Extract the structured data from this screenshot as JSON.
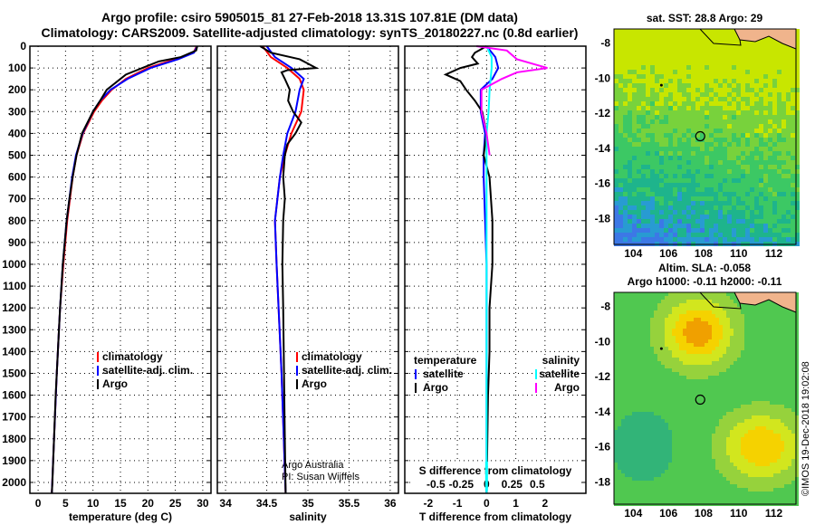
{
  "title": {
    "line1": "Argo profile: csiro 5905015_81 27-Feb-2018 13.31S 107.81E (DM data)",
    "line2": "Climatology: CARS2009. Satellite-adjusted climatology: synTS_20180227.nc (0.8d earlier)"
  },
  "credit": {
    "line1": "Argo Australia",
    "line2": "PI: Susan Wijffels"
  },
  "timestamp": "©IMOS 19-Dec-2018 19:02:08",
  "colors": {
    "climatology": "#ff0000",
    "satellite": "#0000ff",
    "argo": "#000000",
    "sat_salinity": "#00ffff",
    "argo_salinity": "#ff00ff"
  },
  "chart_data": [
    {
      "type": "line",
      "name": "temperature",
      "xlabel": "temperature (deg C)",
      "xlim": [
        -1.5,
        31.5
      ],
      "ylim": [
        2050,
        0
      ],
      "xticks": [
        0,
        5,
        10,
        15,
        20,
        25,
        30
      ],
      "yticks": [
        0,
        100,
        200,
        300,
        400,
        500,
        600,
        700,
        800,
        900,
        1000,
        1100,
        1200,
        1300,
        1400,
        1500,
        1600,
        1700,
        1800,
        1900,
        2000
      ],
      "legend": [
        "climatology",
        "satellite-adj. clim.",
        "Argo"
      ],
      "series": [
        {
          "name": "climatology",
          "color": "#ff0000",
          "depth": [
            0,
            30,
            60,
            100,
            150,
            200,
            250,
            300,
            400,
            500,
            600,
            800,
            1000,
            1200,
            1500,
            1800,
            2050
          ],
          "values": [
            28.9,
            28.3,
            25,
            20,
            16,
            13.4,
            11.6,
            10.2,
            8.2,
            7,
            6.3,
            5.3,
            4.6,
            4,
            3.4,
            2.9,
            2.5
          ]
        },
        {
          "name": "satellite-adj. clim.",
          "color": "#0000ff",
          "depth": [
            0,
            30,
            60,
            100,
            150,
            200,
            250,
            300,
            400,
            500,
            600,
            800,
            1000,
            1200,
            1500,
            1800,
            2050
          ],
          "values": [
            29,
            28.4,
            25.5,
            20.5,
            16.3,
            13.2,
            11.3,
            10,
            8.1,
            6.9,
            6.2,
            5.2,
            4.5,
            4,
            3.4,
            2.9,
            2.5
          ]
        },
        {
          "name": "Argo",
          "color": "#000000",
          "depth": [
            0,
            20,
            50,
            70,
            100,
            130,
            160,
            200,
            250,
            300,
            400,
            500,
            600,
            700,
            800,
            1000,
            1200,
            1400,
            1600,
            1800,
            2000,
            2050
          ],
          "values": [
            29,
            28.8,
            26,
            22,
            19,
            16,
            14.5,
            12.5,
            11.3,
            10,
            8,
            7,
            6.3,
            5.7,
            5.2,
            4.5,
            4,
            3.6,
            3.2,
            2.9,
            2.6,
            2.5
          ]
        }
      ]
    },
    {
      "type": "line",
      "name": "salinity",
      "xlabel": "salinity",
      "xlim": [
        33.9,
        36.1
      ],
      "ylim": [
        2050,
        0
      ],
      "xticks": [
        34,
        34.5,
        35,
        35.5,
        36
      ],
      "legend": [
        "climatology",
        "satellite-adj. clim.",
        "Argo"
      ],
      "series": [
        {
          "name": "climatology",
          "color": "#ff0000",
          "depth": [
            0,
            50,
            100,
            150,
            200,
            300,
            400,
            500,
            600,
            800,
            1000,
            1500,
            2050
          ],
          "values": [
            34.45,
            34.55,
            34.75,
            34.9,
            34.95,
            34.92,
            34.8,
            34.72,
            34.66,
            34.6,
            34.62,
            34.68,
            34.73
          ]
        },
        {
          "name": "satellite-adj. clim.",
          "color": "#0000ff",
          "depth": [
            0,
            50,
            100,
            150,
            200,
            300,
            400,
            500,
            600,
            800,
            1000,
            1500,
            2050
          ],
          "values": [
            34.5,
            34.6,
            34.8,
            34.95,
            34.9,
            34.85,
            34.75,
            34.7,
            34.66,
            34.6,
            34.62,
            34.68,
            34.73
          ]
        },
        {
          "name": "Argo",
          "color": "#000000",
          "depth": [
            0,
            30,
            60,
            80,
            100,
            110,
            120,
            150,
            200,
            250,
            300,
            350,
            400,
            450,
            500,
            600,
            700,
            800,
            1000,
            1200,
            1500,
            1800,
            2050
          ],
          "values": [
            34.42,
            34.55,
            34.9,
            35.0,
            35.1,
            34.75,
            34.68,
            34.72,
            34.78,
            34.76,
            34.82,
            34.92,
            34.85,
            34.75,
            34.72,
            34.7,
            34.72,
            34.7,
            34.69,
            34.7,
            34.71,
            34.72,
            34.73
          ]
        }
      ]
    },
    {
      "type": "line",
      "name": "difference",
      "xlabel": "T difference from climatology",
      "x2label": "S difference from climatology",
      "xlim": [
        -2.8,
        3.4
      ],
      "ylim": [
        2050,
        0
      ],
      "xticks": [
        -2,
        -1,
        0,
        1,
        2
      ],
      "x2ticks": [
        -0.5,
        -0.25,
        0,
        0.25,
        0.5
      ],
      "s_scale": 3.47,
      "legend_left": {
        "title": "temperature",
        "items": [
          "satellite",
          "Argo"
        ]
      },
      "legend_right": {
        "title": "salinity",
        "items": [
          "satellite",
          "Argo"
        ]
      },
      "series": [
        {
          "name": "T satellite",
          "color": "#0000ff",
          "axis": "T",
          "depth": [
            0,
            50,
            100,
            150,
            200,
            300,
            400,
            500,
            600,
            800,
            1000,
            2050
          ],
          "values": [
            0,
            0.3,
            0.4,
            0.2,
            -0.2,
            -0.2,
            -0.05,
            -0.1,
            -0.1,
            -0.05,
            0,
            0
          ]
        },
        {
          "name": "T Argo",
          "color": "#000000",
          "axis": "T",
          "depth": [
            0,
            30,
            50,
            80,
            100,
            130,
            160,
            200,
            250,
            300,
            400,
            500,
            600,
            800,
            1000,
            1200,
            1400,
            1600,
            2050
          ],
          "values": [
            0,
            -0.4,
            -0.5,
            -0.3,
            -0.9,
            -1.4,
            -0.9,
            -0.7,
            -0.4,
            -0.15,
            0,
            -0.1,
            0.1,
            0.2,
            0.2,
            0.1,
            0.1,
            0.05,
            0
          ]
        },
        {
          "name": "S satellite",
          "color": "#00ffff",
          "axis": "S",
          "depth": [
            0,
            50,
            100,
            200,
            300,
            400,
            600,
            1000,
            2050
          ],
          "values": [
            0,
            0.05,
            0.05,
            0.03,
            0.02,
            0,
            0,
            0,
            0
          ]
        },
        {
          "name": "S Argo",
          "color": "#ff00ff",
          "axis": "S",
          "depth": [
            0,
            20,
            60,
            80,
            100,
            120,
            150,
            200,
            300,
            400,
            500
          ],
          "values": [
            -0.1,
            0.2,
            0.3,
            0.45,
            0.6,
            0.3,
            0.15,
            -0.05,
            -0.05,
            0,
            0.03
          ]
        }
      ]
    }
  ],
  "maps": [
    {
      "name": "sst-map",
      "title": "sat. SST: 28.8 Argo: 29",
      "xticks": [
        104,
        106,
        108,
        110,
        112
      ],
      "yticks": [
        -8,
        -10,
        -12,
        -14,
        -16,
        -18
      ],
      "profile": [
        107.81,
        -13.31
      ]
    },
    {
      "name": "sla-map",
      "title": "Altim. SLA: -0.058",
      "subtitle": "Argo h1000: -0.11 h2000: -0.11",
      "xticks": [
        104,
        106,
        108,
        110,
        112
      ],
      "yticks": [
        -8,
        -10,
        -12,
        -14,
        -16,
        -18
      ],
      "profile": [
        107.81,
        -13.31
      ]
    }
  ]
}
